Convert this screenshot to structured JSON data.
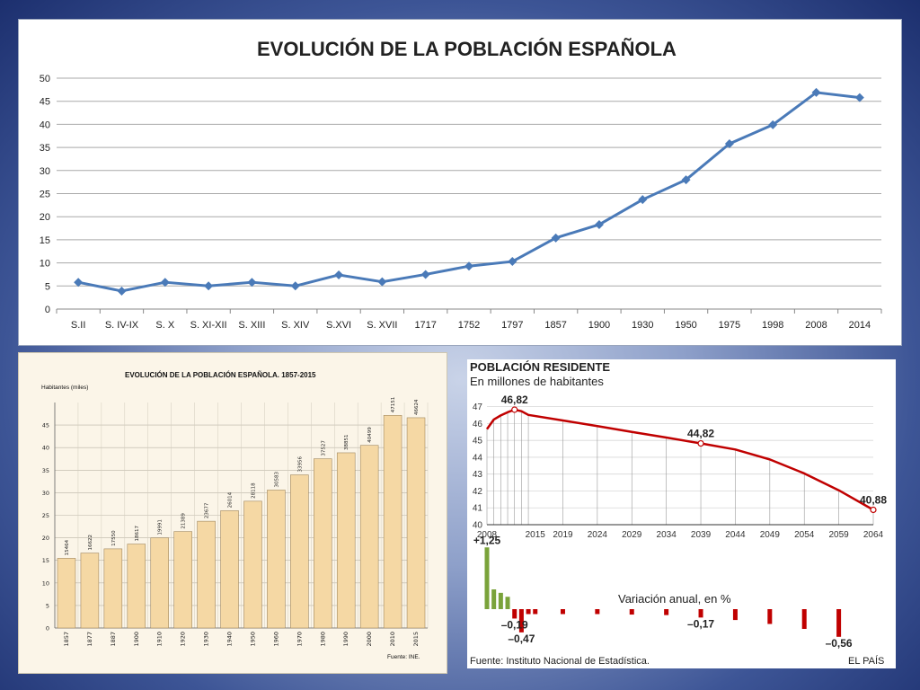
{
  "chart_data": [
    {
      "type": "line",
      "title": "EVOLUCIÓN DE LA POBLACIÓN ESPAÑOLA",
      "categories": [
        "S.II",
        "S. IV-IX",
        "S. X",
        "S. XI-XII",
        "S. XIII",
        "S. XIV",
        "S.XVI",
        "S. XVII",
        "1717",
        "1752",
        "1797",
        "1857",
        "1900",
        "1930",
        "1950",
        "1975",
        "1998",
        "2008",
        "2014"
      ],
      "values": [
        5.8,
        3.9,
        5.8,
        5.0,
        5.8,
        5.0,
        7.4,
        5.9,
        7.5,
        9.3,
        10.3,
        15.4,
        18.3,
        23.7,
        28.0,
        35.8,
        39.9,
        46.9,
        45.8
      ],
      "yticks": [
        0,
        5,
        10,
        15,
        20,
        25,
        30,
        35,
        40,
        45,
        50
      ],
      "ylim": [
        0,
        50
      ],
      "grid": true,
      "color": "#4a7ab8"
    },
    {
      "type": "bar",
      "title": "EVOLUCIÓN DE LA POBLACIÓN ESPAÑOLA. 1857-2015",
      "ylabel": "Habitantes (miles)",
      "categories": [
        "1857",
        "1877",
        "1887",
        "1900",
        "1910",
        "1920",
        "1930",
        "1940",
        "1950",
        "1960",
        "1970",
        "1980",
        "1990",
        "2000",
        "2010",
        "2015"
      ],
      "values": [
        15464,
        16622,
        17550,
        18617,
        19991,
        21389,
        23677,
        26014,
        28118,
        30583,
        33956,
        37527,
        38851,
        40499,
        47151,
        46624
      ],
      "yticks": [
        0,
        5,
        10,
        15,
        20,
        25,
        30,
        35,
        40,
        45
      ],
      "ylim": [
        0,
        50
      ],
      "grid": true,
      "source": "Fuente: INE.",
      "color": "#f5d8a4"
    },
    {
      "type": "line",
      "title": "POBLACIÓN RESIDENTE",
      "subtitle": "En millones de habitantes",
      "x": [
        2008,
        2009,
        2010,
        2011,
        2012,
        2013,
        2014,
        2019,
        2024,
        2029,
        2034,
        2039,
        2044,
        2049,
        2054,
        2059,
        2064
      ],
      "values": [
        45.67,
        46.24,
        46.48,
        46.67,
        46.82,
        46.73,
        46.51,
        46.18,
        45.85,
        45.5,
        45.17,
        44.82,
        44.46,
        43.87,
        43.04,
        42.04,
        40.88
      ],
      "xticks": [
        2008,
        2015,
        2019,
        2024,
        2029,
        2034,
        2039,
        2044,
        2049,
        2054,
        2059,
        2064
      ],
      "yticks": [
        40,
        41,
        42,
        43,
        44,
        45,
        46,
        47
      ],
      "ylim": [
        40,
        47.3
      ],
      "annotations": [
        {
          "x": 2012,
          "y": 46.82,
          "label": "46,82"
        },
        {
          "x": 2039,
          "y": 44.82,
          "label": "44,82"
        },
        {
          "x": 2064,
          "y": 40.88,
          "label": "40,88"
        }
      ],
      "color": "#c00000",
      "variation": {
        "label": "Variación anual, en %",
        "bars": [
          {
            "x": 2008,
            "v": 1.25
          },
          {
            "x": 2009,
            "v": 0.4
          },
          {
            "x": 2010,
            "v": 0.33
          },
          {
            "x": 2011,
            "v": 0.25
          },
          {
            "x": 2012,
            "v": -0.19
          },
          {
            "x": 2013,
            "v": -0.47
          },
          {
            "x": 2014,
            "v": -0.1
          },
          {
            "x": 2015,
            "v": -0.1
          },
          {
            "x": 2019,
            "v": -0.1
          },
          {
            "x": 2024,
            "v": -0.1
          },
          {
            "x": 2029,
            "v": -0.11
          },
          {
            "x": 2034,
            "v": -0.12
          },
          {
            "x": 2039,
            "v": -0.17
          },
          {
            "x": 2044,
            "v": -0.22
          },
          {
            "x": 2049,
            "v": -0.3
          },
          {
            "x": 2054,
            "v": -0.4
          },
          {
            "x": 2059,
            "v": -0.56
          }
        ],
        "labels": [
          {
            "x": 2008,
            "v": 1.25,
            "text": "+1,25"
          },
          {
            "x": 2012,
            "v": -0.19,
            "text": "–0,19"
          },
          {
            "x": 2013,
            "v": -0.47,
            "text": "–0,47"
          },
          {
            "x": 2039,
            "v": -0.17,
            "text": "–0,17"
          },
          {
            "x": 2059,
            "v": -0.56,
            "text": "–0,56"
          }
        ],
        "pos_color": "#7aa33a",
        "neg_color": "#c00000"
      },
      "source": "Fuente: Instituto Nacional de Estadística.",
      "credit": "EL PAÍS"
    }
  ]
}
